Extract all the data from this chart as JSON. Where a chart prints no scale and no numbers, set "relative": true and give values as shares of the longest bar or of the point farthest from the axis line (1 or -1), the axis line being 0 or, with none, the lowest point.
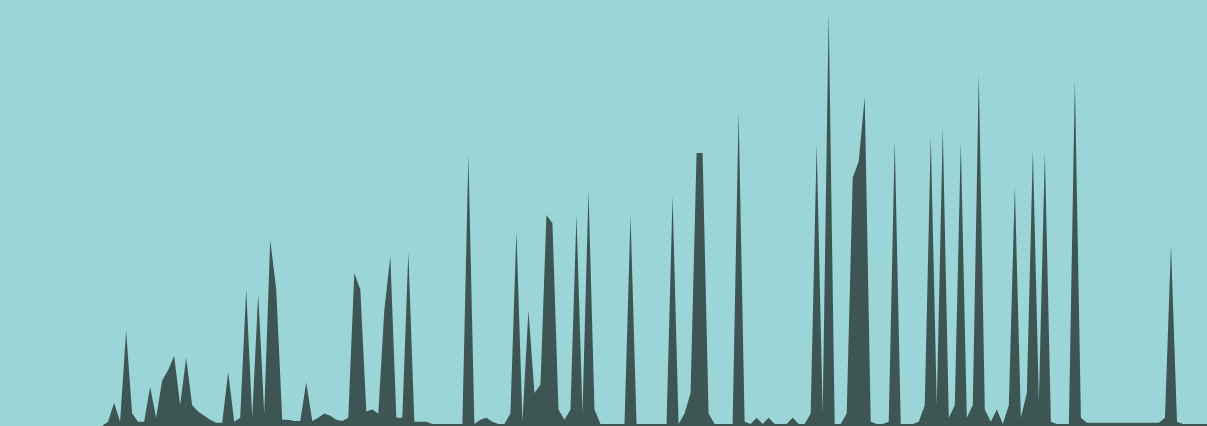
{
  "chart_data": {
    "type": "area",
    "relative": true,
    "categories": [
      null,
      null,
      null,
      null,
      null,
      null,
      null,
      null,
      null,
      null,
      null,
      null,
      null,
      null,
      null,
      null,
      null,
      null,
      null,
      null,
      null,
      null,
      null,
      null,
      null,
      null,
      null,
      null,
      null,
      null,
      null,
      null,
      null,
      null,
      null,
      null,
      null,
      null,
      null,
      null,
      null,
      null,
      null,
      null,
      null,
      null,
      null,
      null,
      null,
      null,
      null,
      null,
      null,
      null,
      null,
      null,
      null,
      null,
      null,
      null,
      null,
      null,
      null,
      null,
      null,
      null,
      null,
      null,
      null,
      null,
      null,
      null,
      null,
      null,
      null,
      null,
      null,
      null,
      null,
      null,
      null,
      null,
      null,
      null,
      null,
      null,
      null,
      null,
      null,
      null,
      null,
      null,
      null,
      null,
      null,
      null,
      null,
      null,
      null,
      null,
      null,
      null,
      null,
      null,
      null,
      null,
      null,
      null,
      null,
      null,
      null,
      null,
      null,
      null,
      null,
      null,
      null,
      null,
      null,
      null,
      null,
      null,
      null,
      null,
      null,
      null,
      null,
      null,
      null,
      null,
      null,
      null,
      null,
      null,
      null,
      null,
      null,
      null,
      null,
      null,
      null,
      null,
      null,
      null,
      null,
      null,
      null,
      null,
      null,
      null,
      null,
      null,
      null,
      null,
      null,
      null,
      null,
      null,
      null,
      null,
      null,
      null,
      null,
      null,
      null,
      null,
      null,
      null,
      null,
      null,
      null,
      null,
      null,
      null,
      null,
      null,
      null,
      null,
      null,
      null,
      null,
      null,
      null,
      null,
      null,
      null,
      null,
      null,
      null,
      null,
      null,
      null,
      null,
      null,
      null,
      null,
      null,
      null,
      null,
      null,
      null,
      null
    ],
    "series": [
      {
        "color": "#3d5553",
        "values": [
          0,
          0,
          0,
          0,
          0,
          0,
          0,
          0,
          0,
          0,
          0,
          0,
          0,
          0,
          0,
          0,
          0,
          0,
          0.01,
          0.056,
          0.01,
          0.23,
          0.03,
          0.01,
          0.01,
          0.094,
          0.02,
          0.11,
          0.135,
          0.17,
          0.05,
          0.165,
          0.05,
          0.035,
          0.025,
          0.015,
          0.008,
          0.008,
          0.13,
          0.01,
          0.02,
          0.33,
          0.02,
          0.32,
          0.03,
          0.45,
          0.33,
          0.015,
          0.015,
          0.012,
          0.012,
          0.106,
          0.012,
          0.02,
          0.03,
          0.025,
          0.015,
          0.012,
          0.02,
          0.37,
          0.33,
          0.035,
          0.04,
          0.03,
          0.28,
          0.41,
          0.02,
          0.02,
          0.42,
          0.01,
          0.01,
          0.01,
          0.005,
          0.005,
          0.005,
          0.005,
          0.005,
          0.005,
          0.655,
          0.005,
          0.015,
          0.02,
          0.01,
          0.005,
          0.005,
          0.03,
          0.47,
          0.01,
          0.28,
          0.08,
          0.1,
          0.51,
          0.49,
          0.04,
          0.015,
          0.04,
          0.51,
          0.03,
          0.57,
          0.04,
          0.005,
          0.005,
          0.005,
          0.005,
          0.005,
          0.51,
          0.005,
          0.005,
          0.005,
          0.005,
          0.005,
          0.005,
          0.556,
          0.005,
          0.03,
          0.08,
          0.66,
          0.66,
          0.03,
          0.005,
          0.005,
          0.005,
          0.005,
          0.76,
          0.01,
          0.005,
          0.02,
          0.005,
          0.02,
          0.005,
          0.005,
          0.005,
          0.02,
          0.005,
          0.005,
          0.03,
          0.68,
          0.03,
          1,
          0.005,
          0.005,
          0.03,
          0.6,
          0.64,
          0.795,
          0.01,
          0.005,
          0.005,
          0.01,
          0.69,
          0.005,
          0.005,
          0.005,
          0.01,
          0.05,
          0.7,
          0.05,
          0.72,
          0.02,
          0.05,
          0.686,
          0.02,
          0.05,
          0.85,
          0.04,
          0.01,
          0.04,
          0.005,
          0.05,
          0.58,
          0.02,
          0.08,
          0.667,
          0.06,
          0.66,
          0.01,
          0.005,
          0.005,
          0.005,
          0.836,
          0.02,
          0.008,
          0.008,
          0.008,
          0.008,
          0.008,
          0.008,
          0.008,
          0.008,
          0.008,
          0.008,
          0.008,
          0.008,
          0.008,
          0.02,
          0.437,
          0.01,
          0.005,
          0.005,
          0.005,
          0.005,
          0.005
        ]
      }
    ]
  }
}
